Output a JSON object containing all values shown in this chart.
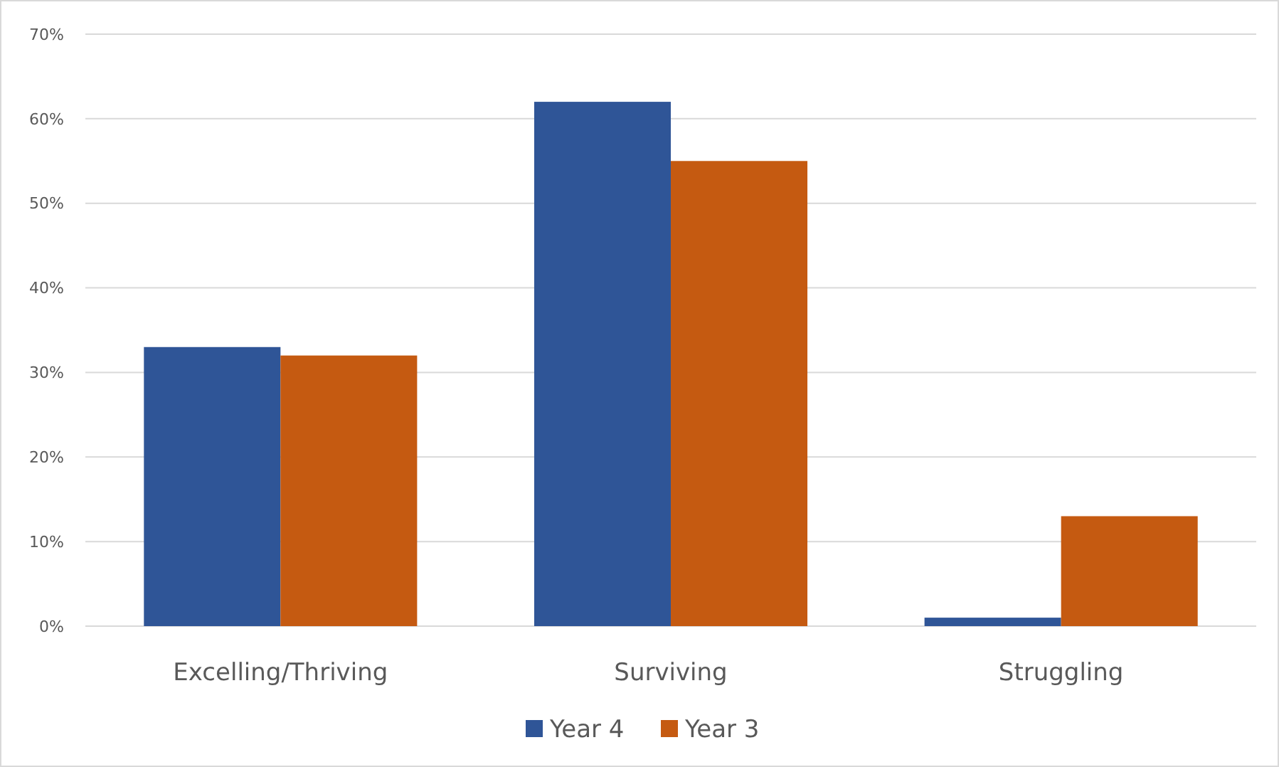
{
  "chart_data": {
    "type": "bar",
    "categories": [
      "Excelling/Thriving",
      "Surviving",
      "Struggling"
    ],
    "series": [
      {
        "name": "Year 4",
        "color": "#2f5597",
        "values": [
          33,
          62,
          1
        ]
      },
      {
        "name": "Year 3",
        "color": "#c55a11",
        "values": [
          32,
          55,
          13
        ]
      }
    ],
    "ylim": [
      0,
      70
    ],
    "yticks": [
      {
        "value": 0,
        "label": "0%"
      },
      {
        "value": 10,
        "label": "10%"
      },
      {
        "value": 20,
        "label": "20%"
      },
      {
        "value": 30,
        "label": "30%"
      },
      {
        "value": 40,
        "label": "40%"
      },
      {
        "value": 50,
        "label": "50%"
      },
      {
        "value": 60,
        "label": "60%"
      },
      {
        "value": 70,
        "label": "70%"
      }
    ],
    "grid": "y",
    "legend": "bottom"
  }
}
